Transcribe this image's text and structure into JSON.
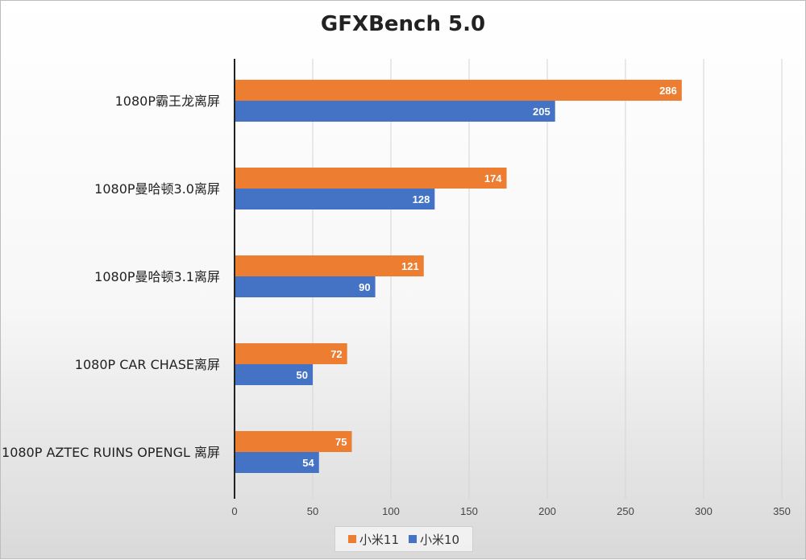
{
  "chart_data": {
    "type": "bar",
    "orientation": "horizontal",
    "title": "GFXBench 5.0",
    "categories": [
      "1080P霸王龙离屏",
      "1080P曼哈顿3.0离屏",
      "1080P曼哈顿3.1离屏",
      "1080P CAR CHASE离屏",
      "1080P AZTEC RUINS OPENGL 离屏"
    ],
    "series": [
      {
        "name": "小米11",
        "color": "#ED7D31",
        "values": [
          286,
          174,
          121,
          72,
          75
        ]
      },
      {
        "name": "小米10",
        "color": "#4472C4",
        "values": [
          205,
          128,
          90,
          50,
          54
        ]
      }
    ],
    "xlim": [
      0,
      350
    ],
    "xticks": [
      0,
      50,
      100,
      150,
      200,
      250,
      300,
      350
    ],
    "grid": "vertical",
    "legend_position": "bottom-center",
    "data_labels": true
  }
}
